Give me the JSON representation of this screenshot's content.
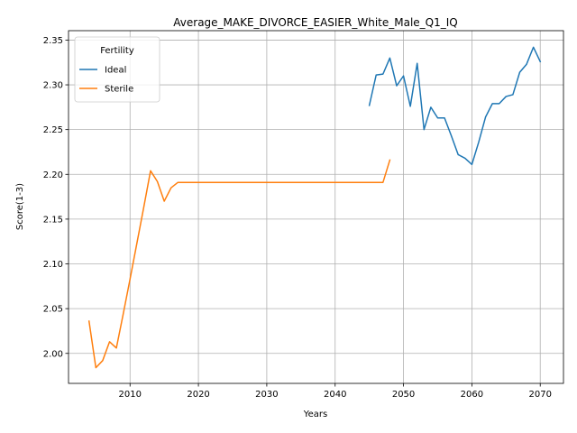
{
  "chart_data": {
    "type": "line",
    "title": "Average_MAKE_DIVORCE_EASIER_White_Male_Q1_IQ",
    "xlabel": "Years",
    "ylabel": "Score(1-3)",
    "xlim": [
      2001,
      2073.4
    ],
    "ylim": [
      1.9665,
      2.3605
    ],
    "xticks": [
      2010,
      2020,
      2030,
      2040,
      2050,
      2060,
      2070
    ],
    "yticks": [
      2.0,
      2.05,
      2.1,
      2.15,
      2.2,
      2.25,
      2.3,
      2.35
    ],
    "xtick_labels": [
      "2010",
      "2020",
      "2030",
      "2040",
      "2050",
      "2060",
      "2070"
    ],
    "ytick_labels": [
      "2.00",
      "2.05",
      "2.10",
      "2.15",
      "2.20",
      "2.25",
      "2.30",
      "2.35"
    ],
    "grid": true,
    "legend": {
      "title": "Fertility",
      "placement": "upper-left"
    },
    "series": [
      {
        "name": "Ideal",
        "color": "#1f77b4",
        "x": [
          2045,
          2046,
          2047,
          2048,
          2049,
          2050,
          2051,
          2052,
          2053,
          2054,
          2055,
          2056,
          2057,
          2058,
          2059,
          2060,
          2061,
          2062,
          2063,
          2064,
          2065,
          2066,
          2067,
          2068,
          2069,
          2070
        ],
        "y": [
          2.277,
          2.311,
          2.312,
          2.33,
          2.299,
          2.31,
          2.276,
          2.324,
          2.25,
          2.275,
          2.263,
          2.263,
          2.243,
          2.222,
          2.218,
          2.211,
          2.236,
          2.264,
          2.279,
          2.279,
          2.287,
          2.289,
          2.314,
          2.323,
          2.342,
          2.326
        ]
      },
      {
        "name": "Sterile",
        "color": "#ff7f0e",
        "x": [
          2004,
          2005,
          2006,
          2007,
          2008,
          2009,
          2010,
          2011,
          2012,
          2013,
          2014,
          2015,
          2016,
          2017,
          2018,
          2019,
          2020,
          2021,
          2022,
          2023,
          2024,
          2025,
          2026,
          2027,
          2028,
          2029,
          2030,
          2031,
          2032,
          2033,
          2034,
          2035,
          2036,
          2037,
          2038,
          2039,
          2040,
          2041,
          2042,
          2043,
          2044,
          2045,
          2046,
          2047,
          2048
        ],
        "y": [
          2.036,
          1.984,
          1.992,
          2.013,
          2.006,
          2.044,
          2.083,
          2.123,
          2.163,
          2.204,
          2.192,
          2.17,
          2.185,
          2.191,
          2.191,
          2.191,
          2.191,
          2.191,
          2.191,
          2.191,
          2.191,
          2.191,
          2.191,
          2.191,
          2.191,
          2.191,
          2.191,
          2.191,
          2.191,
          2.191,
          2.191,
          2.191,
          2.191,
          2.191,
          2.191,
          2.191,
          2.191,
          2.191,
          2.191,
          2.191,
          2.191,
          2.191,
          2.191,
          2.191,
          2.216
        ]
      }
    ]
  }
}
